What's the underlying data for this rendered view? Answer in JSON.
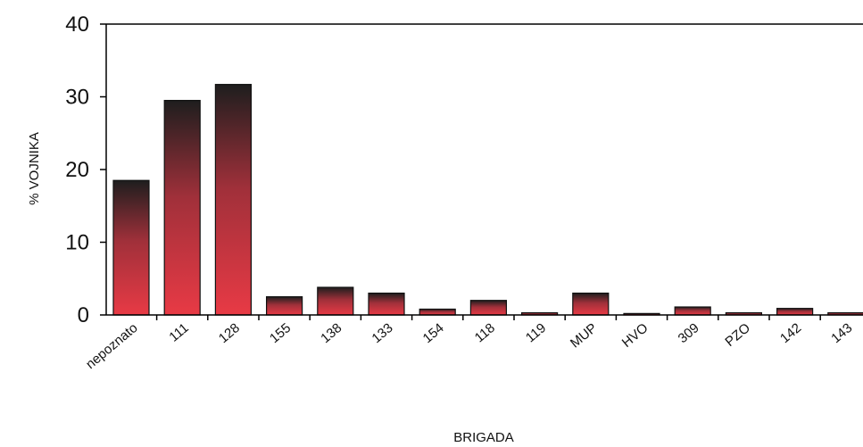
{
  "chart_data": {
    "type": "bar",
    "xlabel": "BRIGADA",
    "ylabel": "% VOJNIKA",
    "ylim": [
      0,
      40
    ],
    "yticks": [
      "0",
      "10",
      "20",
      "30",
      "40"
    ],
    "categories": [
      "nepoznato",
      "111",
      "128",
      "155",
      "138",
      "133",
      "154",
      "118",
      "119",
      "MUP",
      "HVO",
      "309",
      "PZO",
      "142",
      "143"
    ],
    "values": [
      18.5,
      29.5,
      31.7,
      2.5,
      3.8,
      3.0,
      0.8,
      2.0,
      0.3,
      3.0,
      0.2,
      1.1,
      0.3,
      0.9,
      0.3
    ],
    "grid": false,
    "colors": {
      "bar_top": "#1e1e1e",
      "bar_bottom": "#e83a45",
      "axis": "#000000"
    }
  }
}
